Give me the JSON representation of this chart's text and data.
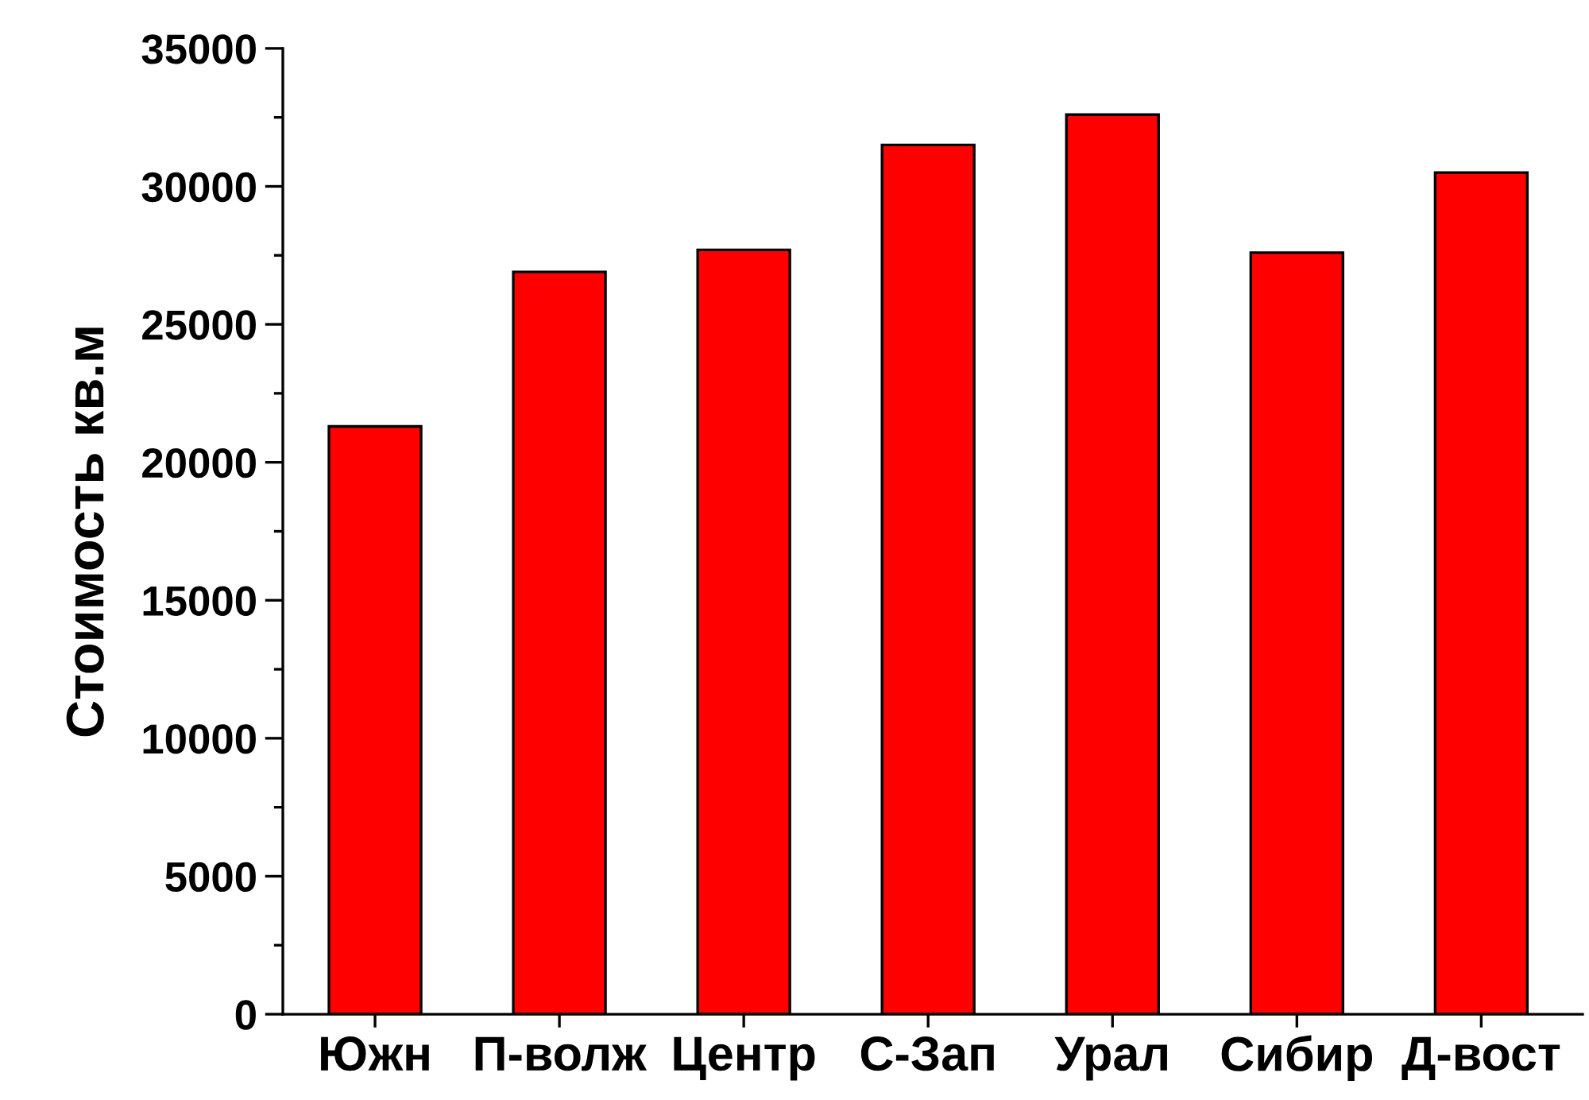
{
  "chart_data": {
    "type": "bar",
    "ylabel": "Стоимость кв.м",
    "categories": [
      "Южн",
      "П-волж",
      "Центр",
      "С-Зап",
      "Урал",
      "Сибир",
      "Д-вост"
    ],
    "values": [
      21300,
      26900,
      27700,
      31500,
      32600,
      27600,
      30500
    ],
    "color": "#ff0000",
    "ylim": [
      0,
      35000
    ],
    "yticks": [
      0,
      5000,
      10000,
      15000,
      20000,
      25000,
      30000,
      35000
    ],
    "grid": false,
    "legend": false
  }
}
